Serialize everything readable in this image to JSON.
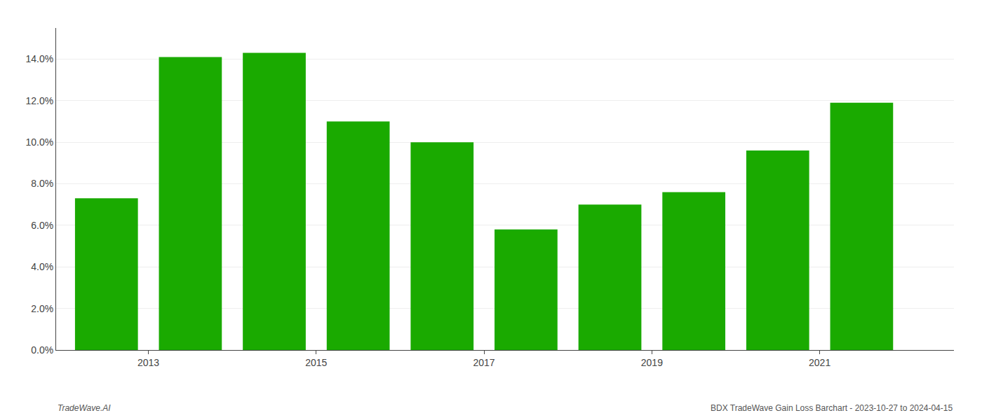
{
  "chart_data": {
    "type": "bar",
    "x": [
      2013,
      2014,
      2015,
      2016,
      2017,
      2018,
      2019,
      2020,
      2021,
      2022
    ],
    "values": [
      0.073,
      0.141,
      0.143,
      0.11,
      0.1,
      0.058,
      0.07,
      0.076,
      0.096,
      0.119
    ],
    "color": "#1aaa00",
    "xlim": [
      2012.4,
      2023.1
    ],
    "xticks": [
      {
        "value": 2013.5,
        "label": "2013"
      },
      {
        "value": 2015.5,
        "label": "2015"
      },
      {
        "value": 2017.5,
        "label": "2017"
      },
      {
        "value": 2019.5,
        "label": "2019"
      },
      {
        "value": 2021.5,
        "label": "2021"
      }
    ],
    "ylim": [
      0,
      0.155
    ],
    "yticks": [
      {
        "value": 0.0,
        "label": "0.0%"
      },
      {
        "value": 0.02,
        "label": "2.0%"
      },
      {
        "value": 0.04,
        "label": "4.0%"
      },
      {
        "value": 0.06,
        "label": "6.0%"
      },
      {
        "value": 0.08,
        "label": "8.0%"
      },
      {
        "value": 0.1,
        "label": "10.0%"
      },
      {
        "value": 0.12,
        "label": "12.0%"
      },
      {
        "value": 0.14,
        "label": "14.0%"
      }
    ],
    "grid": true,
    "annotations": [
      "TradeWave.AI",
      "BDX TradeWave Gain Loss Barchart - 2023-10-27 to 2024-04-15"
    ]
  }
}
